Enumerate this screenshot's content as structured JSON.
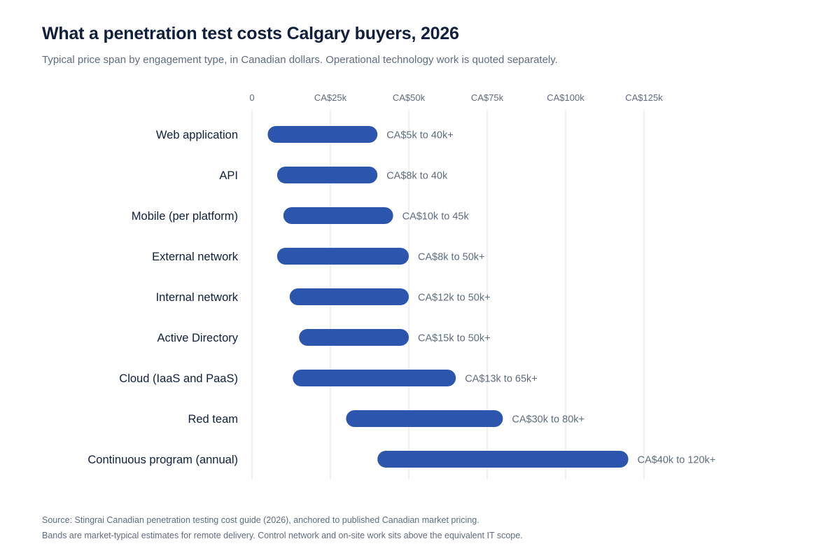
{
  "header": {
    "title": "What a penetration test costs Calgary buyers, 2026",
    "subtitle": "Typical price span by engagement type, in Canadian dollars. Operational technology work is quoted separately."
  },
  "footer": {
    "source_line": "Source: Stingrai Canadian penetration testing cost guide (2026), anchored to published Canadian market pricing.",
    "note_line": "Bands are market-typical estimates for remote delivery. Control network and on-site work sits above the equivalent IT scope."
  },
  "colors": {
    "bar": "#2c56ad",
    "gridline": "#dfe3ef",
    "text_primary": "#0f1f3d",
    "text_secondary": "#5f6b80"
  },
  "chart_data": {
    "type": "bar",
    "orientation": "horizontal-range",
    "title": "What a penetration test costs Calgary buyers, 2026",
    "subtitle": "Typical price span by engagement type, in Canadian dollars. Operational technology work is quoted separately.",
    "unit": "CA$ thousands",
    "xlim": [
      0,
      130
    ],
    "x_ticks": [
      0,
      25,
      50,
      75,
      100,
      125
    ],
    "x_tick_labels": [
      "0",
      "CA$25k",
      "CA$50k",
      "CA$75k",
      "CA$100k",
      "CA$125k"
    ],
    "x_axis_position": "top",
    "grid": true,
    "categories": [
      "Web application",
      "API",
      "Mobile (per platform)",
      "External network",
      "Internal network",
      "Active Directory",
      "Cloud (IaaS and PaaS)",
      "Red team",
      "Continuous program (annual)"
    ],
    "ranges": [
      {
        "low": 5,
        "high": 40,
        "label": "CA$5k to 40k+"
      },
      {
        "low": 8,
        "high": 40,
        "label": "CA$8k to 40k"
      },
      {
        "low": 10,
        "high": 45,
        "label": "CA$10k to 45k"
      },
      {
        "low": 8,
        "high": 50,
        "label": "CA$8k to 50k+"
      },
      {
        "low": 12,
        "high": 50,
        "label": "CA$12k to 50k+"
      },
      {
        "low": 15,
        "high": 50,
        "label": "CA$15k to 50k+"
      },
      {
        "low": 13,
        "high": 65,
        "label": "CA$13k to 65k+"
      },
      {
        "low": 30,
        "high": 80,
        "label": "CA$30k to 80k+"
      },
      {
        "low": 40,
        "high": 120,
        "label": "CA$40k to 120k+"
      }
    ]
  }
}
